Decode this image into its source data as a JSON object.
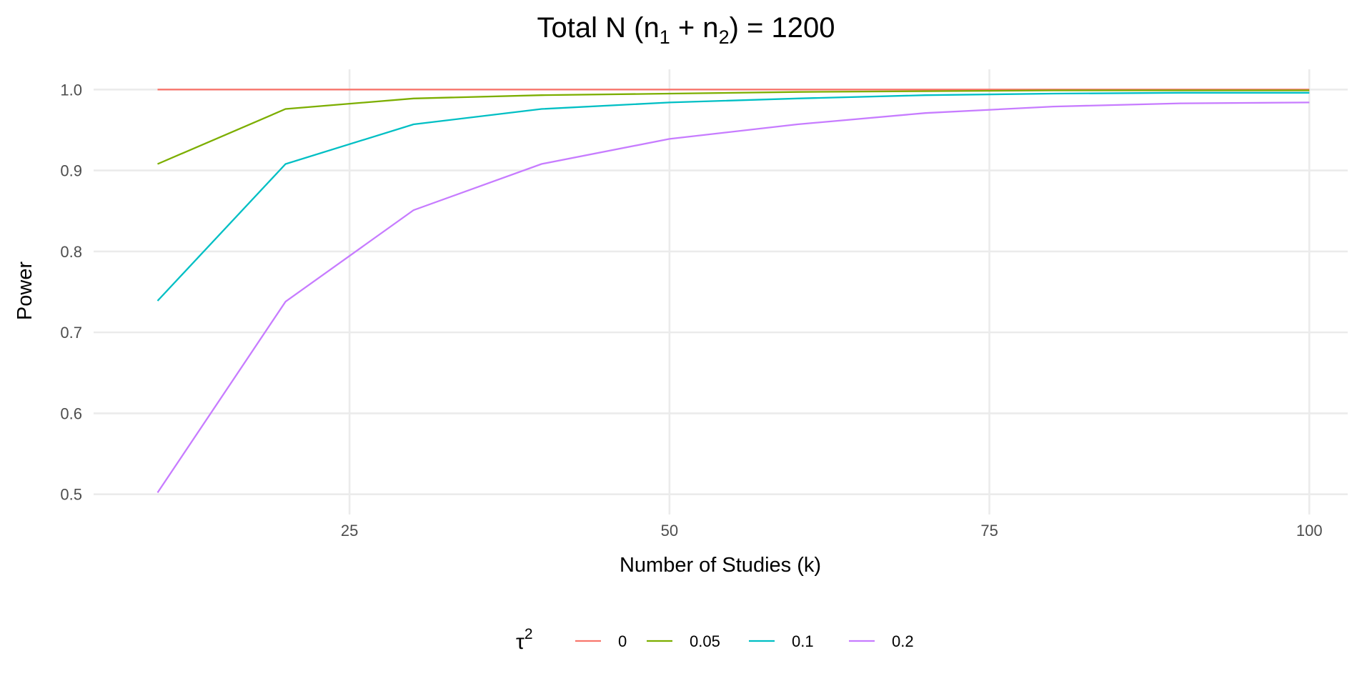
{
  "chart_data": {
    "type": "line",
    "title": "Total N (n1 + n2) = 1200",
    "title_parts": {
      "main": "Total N (n",
      "sub1": "1",
      "plus": " + n",
      "sub2": "2",
      "end": ") = 1200"
    },
    "xlabel": "Number of Studies (k)",
    "ylabel": "Power",
    "xlim": [
      5,
      103
    ],
    "ylim": [
      0.475,
      1.025
    ],
    "xticks": [
      25,
      50,
      75,
      100
    ],
    "yticks": [
      0.5,
      0.6,
      0.7,
      0.8,
      0.9,
      1.0
    ],
    "ytick_labels": [
      "0.5",
      "0.6",
      "0.7",
      "0.8",
      "0.9",
      "1.0"
    ],
    "xtick_labels": [
      "25",
      "50",
      "75",
      "100"
    ],
    "grid": true,
    "legend_position": "bottom",
    "legend_title": "τ",
    "legend_title_sup": "2",
    "x": [
      10,
      20,
      30,
      40,
      50,
      60,
      70,
      80,
      90,
      100
    ],
    "series": [
      {
        "name": "0",
        "color": "#F8766D",
        "values": [
          1.0,
          1.0,
          1.0,
          1.0,
          1.0,
          1.0,
          1.0,
          1.0,
          1.0,
          1.0
        ]
      },
      {
        "name": "0.05",
        "color": "#7CAE00",
        "values": [
          0.908,
          0.976,
          0.989,
          0.993,
          0.995,
          0.997,
          0.998,
          0.999,
          0.999,
          0.999
        ]
      },
      {
        "name": "0.1",
        "color": "#00BFC4",
        "values": [
          0.739,
          0.908,
          0.957,
          0.976,
          0.984,
          0.989,
          0.993,
          0.995,
          0.996,
          0.996
        ]
      },
      {
        "name": "0.2",
        "color": "#C77CFF",
        "values": [
          0.502,
          0.738,
          0.851,
          0.908,
          0.939,
          0.957,
          0.971,
          0.979,
          0.983,
          0.984
        ]
      }
    ]
  }
}
